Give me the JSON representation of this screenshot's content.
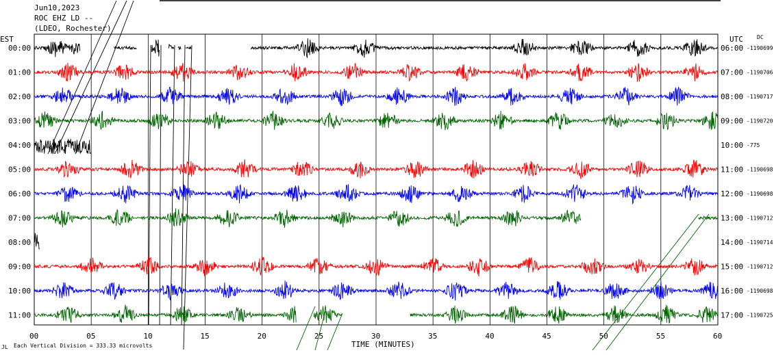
{
  "header": {
    "date": "Jun10,2023",
    "station": "ROC EHZ LD --",
    "network": "(LDEO, Rochester)"
  },
  "labels": {
    "left_tz": "EST",
    "right_tz": "UTC",
    "dc": "DC",
    "footer": "Each Vertical Division =  333.33 microvolts",
    "corner": "JL"
  },
  "colors": {
    "traces": [
      "#000000",
      "#ff0000",
      "#0000ff",
      "#006400"
    ],
    "grid": "#000000",
    "background": "#ffffff"
  },
  "chart_data": {
    "type": "line",
    "title": "",
    "xlabel": "TIME (MINUTES)",
    "ylabel": "",
    "xlim": [
      0,
      60
    ],
    "x_ticks": [
      "00",
      "05",
      "10",
      "15",
      "20",
      "25",
      "30",
      "35",
      "40",
      "45",
      "50",
      "55",
      "60"
    ],
    "rows": [
      {
        "est": "00:00",
        "utc": "06:00",
        "dc": "-1190699",
        "color": "#000000",
        "segments": [
          [
            0,
            4
          ],
          [
            7,
            9
          ],
          [
            10.3,
            11
          ],
          [
            11.8,
            12.3
          ],
          [
            12.6,
            12.9
          ],
          [
            13.3,
            13.8
          ],
          [
            19,
            60
          ]
        ],
        "bursts": [
          2,
          4,
          11,
          24,
          29,
          43,
          48,
          53,
          58
        ]
      },
      {
        "est": "01:00",
        "utc": "07:00",
        "dc": "-1190706",
        "color": "#ff0000",
        "segments": [
          [
            0,
            60
          ]
        ],
        "bursts": [
          3,
          8,
          13,
          18,
          23,
          28,
          33,
          38,
          43,
          48,
          53,
          58
        ]
      },
      {
        "est": "02:00",
        "utc": "08:00",
        "dc": "-1190717",
        "color": "#0000ff",
        "segments": [
          [
            0,
            60
          ]
        ],
        "bursts": [
          2.5,
          7.5,
          12,
          17,
          22,
          27,
          32,
          37,
          42,
          47,
          52,
          56.5
        ]
      },
      {
        "est": "03:00",
        "utc": "09:00",
        "dc": "-1190720",
        "color": "#006400",
        "segments": [
          [
            0,
            60
          ]
        ],
        "bursts": [
          1,
          6,
          11,
          16,
          21,
          26,
          31,
          36,
          41,
          46,
          51,
          55.5,
          59.5
        ]
      },
      {
        "est": "04:00",
        "utc": "10:00",
        "dc": "-775",
        "color": "#000000",
        "segments": [
          [
            0,
            5
          ]
        ],
        "bursts": [
          2,
          4.5
        ]
      },
      {
        "est": "05:00",
        "utc": "11:00",
        "dc": "-1190698",
        "color": "#ff0000",
        "segments": [
          [
            0,
            60
          ]
        ],
        "bursts": [
          3,
          8.5,
          13.5,
          18.5,
          23.5,
          28.5,
          33.5,
          38.5,
          43.5,
          48,
          53,
          58
        ]
      },
      {
        "est": "06:00",
        "utc": "12:00",
        "dc": "-1190698",
        "color": "#0000ff",
        "segments": [
          [
            0,
            60
          ]
        ],
        "bursts": [
          3,
          8,
          13,
          18,
          23,
          27.5,
          33,
          37.5,
          43,
          47.5,
          52.5,
          57.5
        ]
      },
      {
        "est": "07:00",
        "utc": "13:00",
        "dc": "-1190712",
        "color": "#006400",
        "segments": [
          [
            0,
            48
          ],
          [
            58.3,
            60
          ]
        ],
        "bursts": [
          2.5,
          7.5,
          12.5,
          17,
          22,
          27,
          32,
          37,
          42,
          47
        ]
      },
      {
        "est": "08:00",
        "utc": "14:00",
        "dc": "-1190714",
        "color": "#000000",
        "segments": [
          [
            0,
            0.5
          ]
        ],
        "bursts": [
          0.2
        ]
      },
      {
        "est": "09:00",
        "utc": "15:00",
        "dc": "-1190712",
        "color": "#ff0000",
        "segments": [
          [
            0,
            60
          ]
        ],
        "bursts": [
          5,
          10,
          15,
          20,
          25,
          30,
          35,
          39,
          43.5,
          49,
          53,
          58
        ]
      },
      {
        "est": "10:00",
        "utc": "16:00",
        "dc": "-1190698",
        "color": "#0000ff",
        "segments": [
          [
            0,
            60
          ]
        ],
        "bursts": [
          2.5,
          7,
          12,
          17,
          22,
          27,
          32,
          37,
          41.5,
          46,
          51,
          55,
          59.5
        ]
      },
      {
        "est": "11:00",
        "utc": "17:00",
        "dc": "-1190725",
        "color": "#006400",
        "segments": [
          [
            0,
            23
          ],
          [
            24.5,
            27
          ],
          [
            33,
            60
          ]
        ],
        "bursts": [
          3,
          8,
          13,
          18,
          23,
          25.5,
          37,
          42,
          46,
          51,
          55.5,
          59
        ]
      }
    ]
  }
}
